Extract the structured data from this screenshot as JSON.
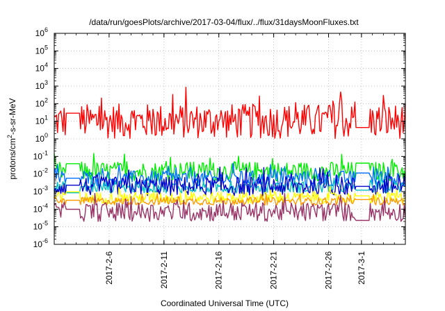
{
  "chart_data": {
    "type": "line",
    "title": "/data/run/goesPlots/archive/2017-03-04/flux/../flux/31daysMoonFluxes.txt",
    "xlabel": "Coordinated Universal Time (UTC)",
    "ylabel": "protons/cm2-s-sr-MeV",
    "ylabel_parts": {
      "base": "protons/cm",
      "sup": "2",
      "rest": "-s-sr-MeV"
    },
    "yscale": "log",
    "ylim_exponents": [
      -6,
      6
    ],
    "y_ticks": [
      {
        "base": "10",
        "exp": "-6",
        "value": -6
      },
      {
        "base": "10",
        "exp": "-5",
        "value": -5
      },
      {
        "base": "10",
        "exp": "-4",
        "value": -4
      },
      {
        "base": "10",
        "exp": "-3",
        "value": -3
      },
      {
        "base": "10",
        "exp": "-2",
        "value": -2
      },
      {
        "base": "10",
        "exp": "-1",
        "value": -1
      },
      {
        "base": "10",
        "exp": "0",
        "value": 0
      },
      {
        "base": "10",
        "exp": "1",
        "value": 1
      },
      {
        "base": "10",
        "exp": "2",
        "value": 2
      },
      {
        "base": "10",
        "exp": "3",
        "value": 3
      },
      {
        "base": "10",
        "exp": "4",
        "value": 4
      },
      {
        "base": "10",
        "exp": "5",
        "value": 5
      },
      {
        "base": "10",
        "exp": "6",
        "value": 6
      }
    ],
    "x_range": [
      "2017-02-01",
      "2017-03-05"
    ],
    "x_ticks": [
      {
        "label": "2017-2-6",
        "date": "2017-02-06"
      },
      {
        "label": "2017-2-11",
        "date": "2017-02-11"
      },
      {
        "label": "2017-2-16",
        "date": "2017-02-16"
      },
      {
        "label": "2017-2-21",
        "date": "2017-02-21"
      },
      {
        "label": "2017-2-26",
        "date": "2017-02-26"
      },
      {
        "label": "2017-3-1",
        "date": "2017-03-01"
      }
    ],
    "grid": true,
    "series": [
      {
        "color": "#ff0000",
        "median_log10": 1.0,
        "spread": 0.45
      },
      {
        "color": "#00ee00",
        "median_log10": -1.85,
        "spread": 0.25
      },
      {
        "color": "#0070ff",
        "median_log10": -2.25,
        "spread": 0.2
      },
      {
        "color": "#00c0c0",
        "median_log10": -2.75,
        "spread": 0.15
      },
      {
        "color": "#0000cc",
        "median_log10": -2.7,
        "spread": 0.25
      },
      {
        "color": "#ffff00",
        "median_log10": -3.35,
        "spread": 0.15
      },
      {
        "color": "#ff9900",
        "median_log10": -3.55,
        "spread": 0.1
      },
      {
        "color": "#993366",
        "median_log10": -4.15,
        "spread": 0.25
      }
    ]
  }
}
